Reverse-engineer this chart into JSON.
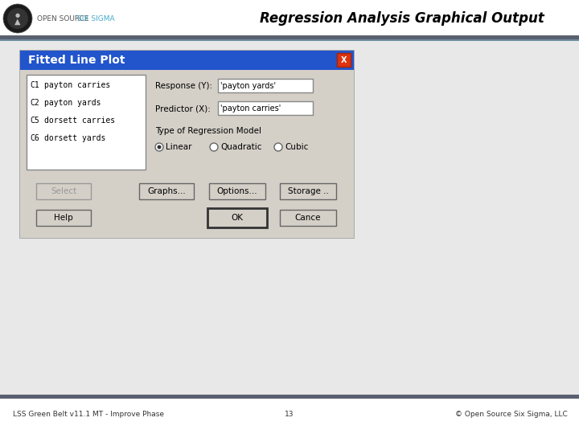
{
  "title": "Regression Analysis Graphical Output",
  "footer_left": "LSS Green Belt v11.1 MT - Improve Phase",
  "footer_center": "13",
  "footer_right": "© Open Source Six Sigma, LLC",
  "dialog_title": "Fitted Line Plot",
  "bg_color": "#e8e8e8",
  "header_bg": "#ffffff",
  "dialog_blue": "#2255cc",
  "dialog_bg": "#d4d0c8",
  "list_items": [
    [
      "C1",
      "payton carries"
    ],
    [
      "C2",
      "payton yards"
    ],
    [
      "C5",
      "dorsett carries"
    ],
    [
      "C6",
      "dorsett yards"
    ]
  ],
  "response_label": "Response (Y):",
  "response_value": "'payton yards'",
  "predictor_label": "Predictor (X):",
  "predictor_value": "'payton carries'",
  "regression_label": "Type of Regression Model",
  "radio_options": [
    "Linear",
    "Quadratic",
    "Cubic"
  ],
  "radio_selected": 0,
  "btn1_labels": [
    "Select",
    "Graphs...",
    "Options...",
    "Storage .."
  ],
  "btn2_labels": [
    "Help",
    "OK",
    "Cance"
  ],
  "separator_color": "#5a6070",
  "footer_sep_color": "#5a6070",
  "logo_bg": "#2a2a2a",
  "header_line_color": "#7090a0"
}
